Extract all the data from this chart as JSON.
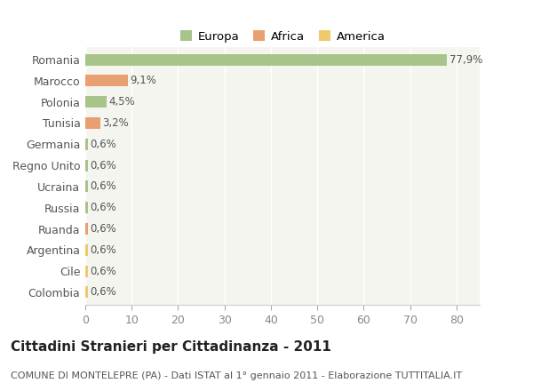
{
  "categories": [
    "Colombia",
    "Cile",
    "Argentina",
    "Ruanda",
    "Russia",
    "Ucraina",
    "Regno Unito",
    "Germania",
    "Tunisia",
    "Polonia",
    "Marocco",
    "Romania"
  ],
  "values": [
    0.6,
    0.6,
    0.6,
    0.6,
    0.6,
    0.6,
    0.6,
    0.6,
    3.2,
    4.5,
    9.1,
    77.9
  ],
  "labels": [
    "0,6%",
    "0,6%",
    "0,6%",
    "0,6%",
    "0,6%",
    "0,6%",
    "0,6%",
    "0,6%",
    "3,2%",
    "4,5%",
    "9,1%",
    "77,9%"
  ],
  "colors": [
    "#f0c96e",
    "#f0c96e",
    "#f0c96e",
    "#e8a070",
    "#a8c48a",
    "#a8c48a",
    "#a8c48a",
    "#a8c48a",
    "#e8a070",
    "#a8c48a",
    "#e8a070",
    "#a8c48a"
  ],
  "legend_labels": [
    "Europa",
    "Africa",
    "America"
  ],
  "legend_colors": [
    "#a8c48a",
    "#e8a070",
    "#f0c96e"
  ],
  "title": "Cittadini Stranieri per Cittadinanza - 2011",
  "subtitle": "COMUNE DI MONTELEPRE (PA) - Dati ISTAT al 1° gennaio 2011 - Elaborazione TUTTITALIA.IT",
  "xlim": [
    0,
    85
  ],
  "xticks": [
    0,
    10,
    20,
    30,
    40,
    50,
    60,
    70,
    80
  ],
  "bg_color": "#ffffff",
  "plot_bg_color": "#f5f5f0",
  "grid_color": "#ffffff",
  "bar_height": 0.55,
  "title_fontsize": 11,
  "subtitle_fontsize": 8,
  "label_fontsize": 8.5,
  "tick_fontsize": 9
}
